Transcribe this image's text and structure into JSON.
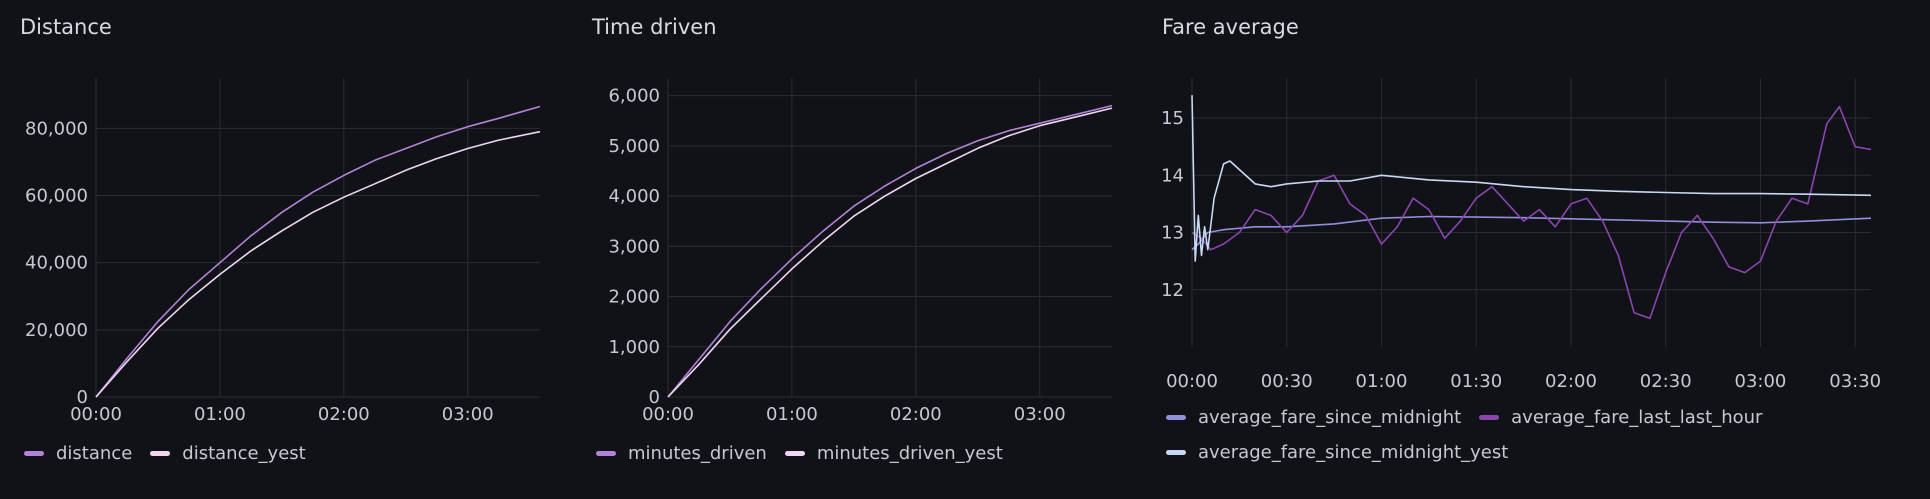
{
  "panels": [
    {
      "title": "Distance"
    },
    {
      "title": "Time driven"
    },
    {
      "title": "Fare average"
    }
  ],
  "colors": {
    "background": "#111217",
    "grid": "#2a2c33",
    "distance": "#b382d9",
    "distance_yest": "#f0d6f3",
    "minutes_driven": "#b382d9",
    "minutes_driven_yest": "#f0d6f3",
    "average_fare_since_midnight": "#8f8fdb",
    "average_fare_last_last_hour": "#8a45b0",
    "average_fare_since_midnight_yest": "#c8d8f5"
  },
  "chart_data": [
    {
      "type": "line",
      "title": "Distance",
      "xlim": [
        "00:00",
        "03:35"
      ],
      "x_ticks": [
        "00:00",
        "01:00",
        "02:00",
        "03:00"
      ],
      "y_ticks": [
        "0",
        "20,000",
        "40,000",
        "60,000",
        "80,000"
      ],
      "ylim": [
        0,
        95000
      ],
      "grid": true,
      "legend": "bottom",
      "series": [
        {
          "name": "distance",
          "x": [
            "00:00",
            "00:15",
            "00:30",
            "00:45",
            "01:00",
            "01:15",
            "01:30",
            "01:45",
            "02:00",
            "02:15",
            "02:30",
            "02:45",
            "03:00",
            "03:15",
            "03:35"
          ],
          "y": [
            0,
            11500,
            22500,
            32000,
            40000,
            48000,
            55000,
            61000,
            66000,
            70500,
            74000,
            77500,
            80500,
            83000,
            86500
          ]
        },
        {
          "name": "distance_yest",
          "x": [
            "00:00",
            "00:15",
            "00:30",
            "00:45",
            "01:00",
            "01:15",
            "01:30",
            "01:45",
            "02:00",
            "02:15",
            "02:30",
            "02:45",
            "03:00",
            "03:15",
            "03:35"
          ],
          "y": [
            0,
            10500,
            20500,
            29000,
            36500,
            43500,
            49500,
            55000,
            59500,
            63500,
            67500,
            71000,
            74000,
            76500,
            79000
          ]
        }
      ]
    },
    {
      "type": "line",
      "title": "Time driven",
      "xlim": [
        "00:00",
        "03:35"
      ],
      "x_ticks": [
        "00:00",
        "01:00",
        "02:00",
        "03:00"
      ],
      "y_ticks": [
        "0",
        "1,000",
        "2,000",
        "3,000",
        "4,000",
        "5,000",
        "6,000"
      ],
      "ylim": [
        0,
        6350
      ],
      "grid": true,
      "legend": "bottom",
      "series": [
        {
          "name": "minutes_driven",
          "x": [
            "00:00",
            "00:15",
            "00:30",
            "00:45",
            "01:00",
            "01:15",
            "01:30",
            "01:45",
            "02:00",
            "02:15",
            "02:30",
            "02:45",
            "03:00",
            "03:15",
            "03:35"
          ],
          "y": [
            0,
            750,
            1500,
            2150,
            2750,
            3300,
            3800,
            4200,
            4550,
            4850,
            5100,
            5300,
            5450,
            5600,
            5800
          ]
        },
        {
          "name": "minutes_driven_yest",
          "x": [
            "00:00",
            "00:15",
            "00:30",
            "00:45",
            "01:00",
            "01:15",
            "01:30",
            "01:45",
            "02:00",
            "02:15",
            "02:30",
            "02:45",
            "03:00",
            "03:15",
            "03:35"
          ],
          "y": [
            0,
            650,
            1350,
            1950,
            2550,
            3100,
            3600,
            4000,
            4350,
            4650,
            4950,
            5200,
            5400,
            5550,
            5750
          ]
        }
      ]
    },
    {
      "type": "line",
      "title": "Fare average",
      "xlim": [
        "00:00",
        "03:35"
      ],
      "x_ticks": [
        "00:00",
        "00:30",
        "01:00",
        "01:30",
        "02:00",
        "02:30",
        "03:00",
        "03:30"
      ],
      "y_ticks": [
        "12",
        "13",
        "14",
        "15"
      ],
      "ylim": [
        11.0,
        15.7
      ],
      "grid": true,
      "legend": "bottom",
      "series": [
        {
          "name": "average_fare_since_midnight",
          "x": [
            "00:00",
            "00:02",
            "00:05",
            "00:10",
            "00:20",
            "00:30",
            "00:45",
            "01:00",
            "01:15",
            "01:30",
            "01:45",
            "02:00",
            "02:15",
            "02:30",
            "02:45",
            "03:00",
            "03:15",
            "03:35"
          ],
          "y": [
            12.7,
            12.8,
            13.0,
            13.05,
            13.1,
            13.1,
            13.15,
            13.25,
            13.28,
            13.27,
            13.26,
            13.24,
            13.22,
            13.2,
            13.18,
            13.17,
            13.2,
            13.25
          ]
        },
        {
          "name": "average_fare_last_last_hour",
          "x": [
            "00:00",
            "00:03",
            "00:06",
            "00:10",
            "00:15",
            "00:20",
            "00:25",
            "00:30",
            "00:35",
            "00:40",
            "00:45",
            "00:50",
            "00:55",
            "01:00",
            "01:05",
            "01:10",
            "01:15",
            "01:20",
            "01:25",
            "01:30",
            "01:35",
            "01:40",
            "01:45",
            "01:50",
            "01:55",
            "02:00",
            "02:05",
            "02:10",
            "02:15",
            "02:20",
            "02:25",
            "02:30",
            "02:35",
            "02:40",
            "02:45",
            "02:50",
            "02:55",
            "03:00",
            "03:05",
            "03:10",
            "03:15",
            "03:18",
            "03:21",
            "03:25",
            "03:30",
            "03:35"
          ],
          "y": [
            13.0,
            12.9,
            12.7,
            12.8,
            13.0,
            13.4,
            13.3,
            13.0,
            13.3,
            13.9,
            14.0,
            13.5,
            13.3,
            12.8,
            13.1,
            13.6,
            13.4,
            12.9,
            13.2,
            13.6,
            13.8,
            13.5,
            13.2,
            13.4,
            13.1,
            13.5,
            13.6,
            13.2,
            12.6,
            11.6,
            11.5,
            12.3,
            13.0,
            13.3,
            12.9,
            12.4,
            12.3,
            12.5,
            13.2,
            13.6,
            13.5,
            14.2,
            14.9,
            15.2,
            14.5,
            14.45
          ]
        },
        {
          "name": "average_fare_since_midnight_yest",
          "x": [
            "00:00",
            "00:01",
            "00:02",
            "00:03",
            "00:04",
            "00:05",
            "00:07",
            "00:10",
            "00:12",
            "00:15",
            "00:20",
            "00:25",
            "00:30",
            "00:40",
            "00:50",
            "01:00",
            "01:15",
            "01:30",
            "01:45",
            "02:00",
            "02:15",
            "02:30",
            "02:45",
            "03:00",
            "03:15",
            "03:35"
          ],
          "y": [
            15.4,
            12.5,
            13.3,
            12.6,
            13.1,
            12.7,
            13.6,
            14.2,
            14.25,
            14.1,
            13.85,
            13.8,
            13.85,
            13.9,
            13.9,
            14.0,
            13.92,
            13.88,
            13.8,
            13.75,
            13.72,
            13.7,
            13.68,
            13.68,
            13.67,
            13.65
          ]
        }
      ]
    }
  ]
}
